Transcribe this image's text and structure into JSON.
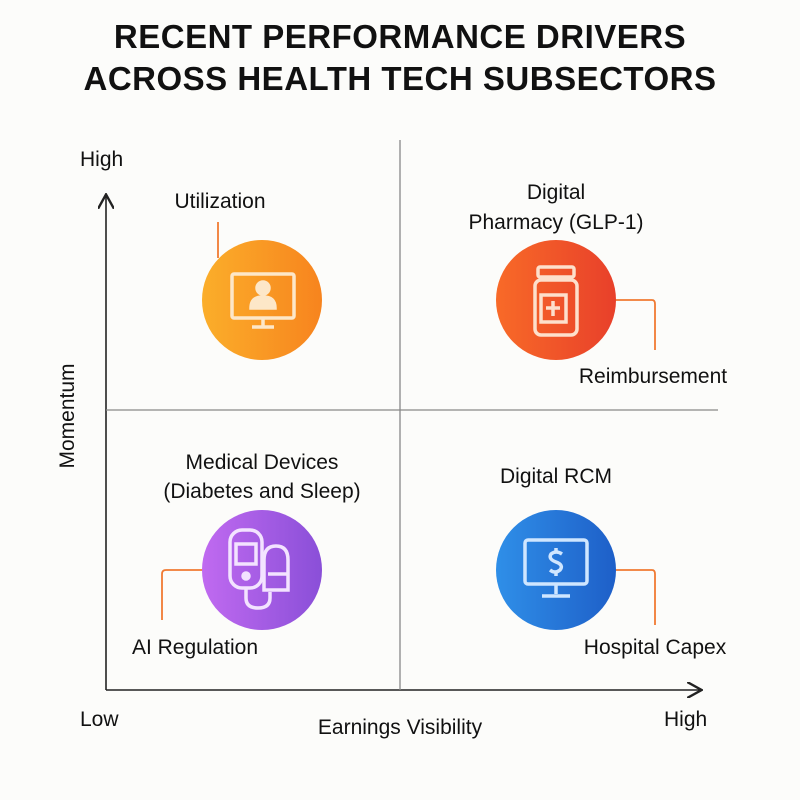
{
  "title": [
    "RECENT PERFORMANCE DRIVERS",
    "ACROSS HEALTH TECH SUBSECTORS"
  ],
  "axes": {
    "y_label": "Momentum",
    "y_high": "High",
    "x_label": "Earnings Visibility",
    "x_low": "Low",
    "x_high": "High"
  },
  "quadrants": {
    "top_left": {
      "driver": "Utilization",
      "icon": "telehealth-monitor-icon",
      "gradient": [
        "#fbae2a",
        "#f7841e"
      ]
    },
    "top_right": {
      "name": [
        "Digital",
        "Pharmacy (GLP-1)"
      ],
      "driver": "Reimbursement",
      "icon": "medicine-bottle-icon",
      "gradient": [
        "#f86a28",
        "#e8402a"
      ]
    },
    "bottom_left": {
      "name": [
        "Medical Devices",
        "(Diabetes and Sleep)"
      ],
      "driver": "AI Regulation",
      "icon": "medical-device-icon",
      "gradient": [
        "#c06af0",
        "#8a4fd8"
      ]
    },
    "bottom_right": {
      "name": [
        "Digital RCM"
      ],
      "driver": "Hospital Capex",
      "icon": "monitor-dollar-icon",
      "gradient": [
        "#2f8fe8",
        "#1e5fc8"
      ]
    }
  },
  "connector_color": "#f07a32"
}
